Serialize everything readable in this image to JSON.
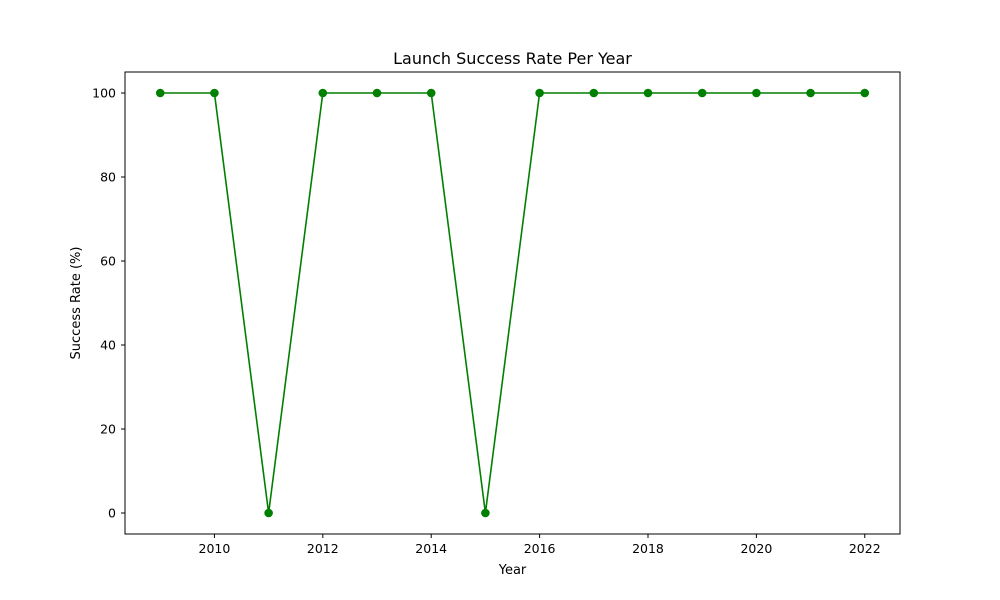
{
  "chart_data": {
    "type": "line",
    "title": "Launch Success Rate Per Year",
    "xlabel": "Year",
    "ylabel": "Success Rate (%)",
    "x": [
      2009,
      2010,
      2011,
      2012,
      2013,
      2014,
      2015,
      2016,
      2017,
      2018,
      2019,
      2020,
      2021,
      2022
    ],
    "series": [
      {
        "values": [
          100,
          100,
          0,
          100,
          100,
          100,
          0,
          100,
          100,
          100,
          100,
          100,
          100,
          100
        ],
        "color": "#008000",
        "marker": "circle"
      }
    ],
    "xlim": [
      2008.35,
      2022.65
    ],
    "ylim": [
      -5,
      105
    ],
    "xticks": [
      2010,
      2012,
      2014,
      2016,
      2018,
      2020,
      2022
    ],
    "yticks": [
      0,
      20,
      40,
      60,
      80,
      100
    ],
    "grid": false,
    "legend": "none"
  }
}
